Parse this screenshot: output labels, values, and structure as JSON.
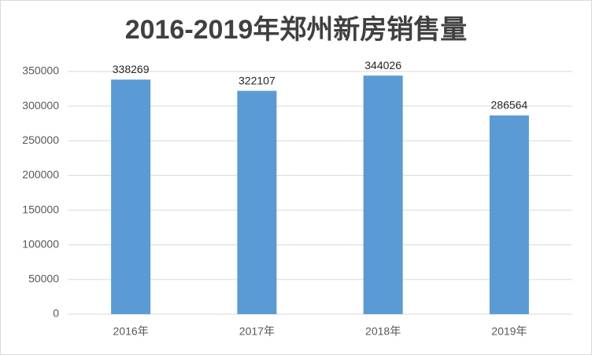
{
  "chart_data": {
    "type": "bar",
    "title": "2016-2019年郑州新房销售量",
    "categories": [
      "2016年",
      "2017年",
      "2018年",
      "2019年"
    ],
    "values": [
      338269,
      322107,
      344026,
      286564
    ],
    "color": "#5b9bd5",
    "ylim": [
      0,
      350000
    ],
    "yticks": [
      0,
      50000,
      100000,
      150000,
      200000,
      250000,
      300000,
      350000
    ],
    "grid": true
  }
}
